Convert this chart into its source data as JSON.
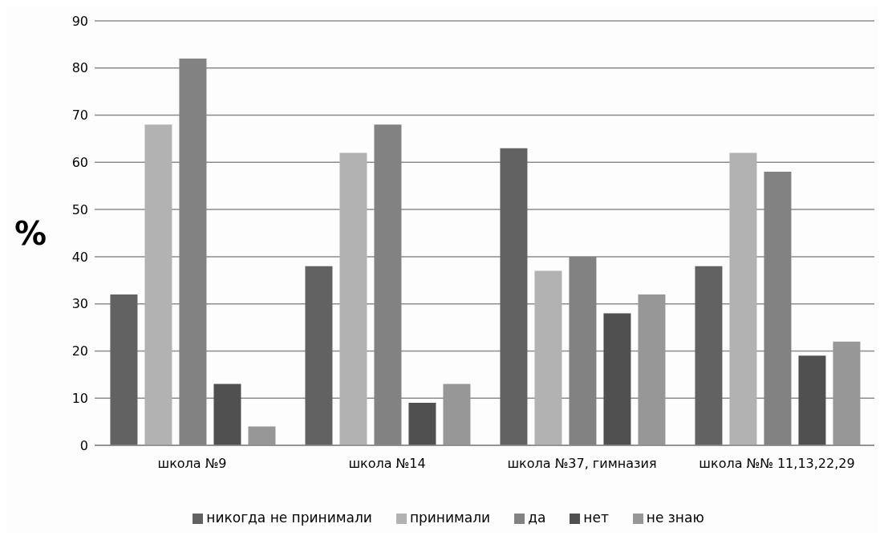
{
  "chart_data": {
    "type": "bar",
    "ylabel": "%",
    "categories": [
      "школа №9",
      "школа №14",
      "школа №37, гимназия",
      "школа №№ 11,13,22,29"
    ],
    "series": [
      {
        "name": "никогда не принимали",
        "color": "#626262",
        "values": [
          32,
          38,
          63,
          38
        ]
      },
      {
        "name": "принимали",
        "color": "#b2b2b2",
        "values": [
          68,
          62,
          37,
          62
        ]
      },
      {
        "name": "да",
        "color": "#828282",
        "values": [
          82,
          68,
          40,
          58
        ]
      },
      {
        "name": "нет",
        "color": "#505050",
        "values": [
          13,
          9,
          28,
          19
        ]
      },
      {
        "name": "не знаю",
        "color": "#979797",
        "values": [
          4,
          13,
          32,
          22
        ]
      }
    ],
    "ylim": [
      0,
      90
    ],
    "yticks": [
      0,
      10,
      20,
      30,
      40,
      50,
      60,
      70,
      80,
      90
    ],
    "grid": "y",
    "legend": "bottom"
  }
}
